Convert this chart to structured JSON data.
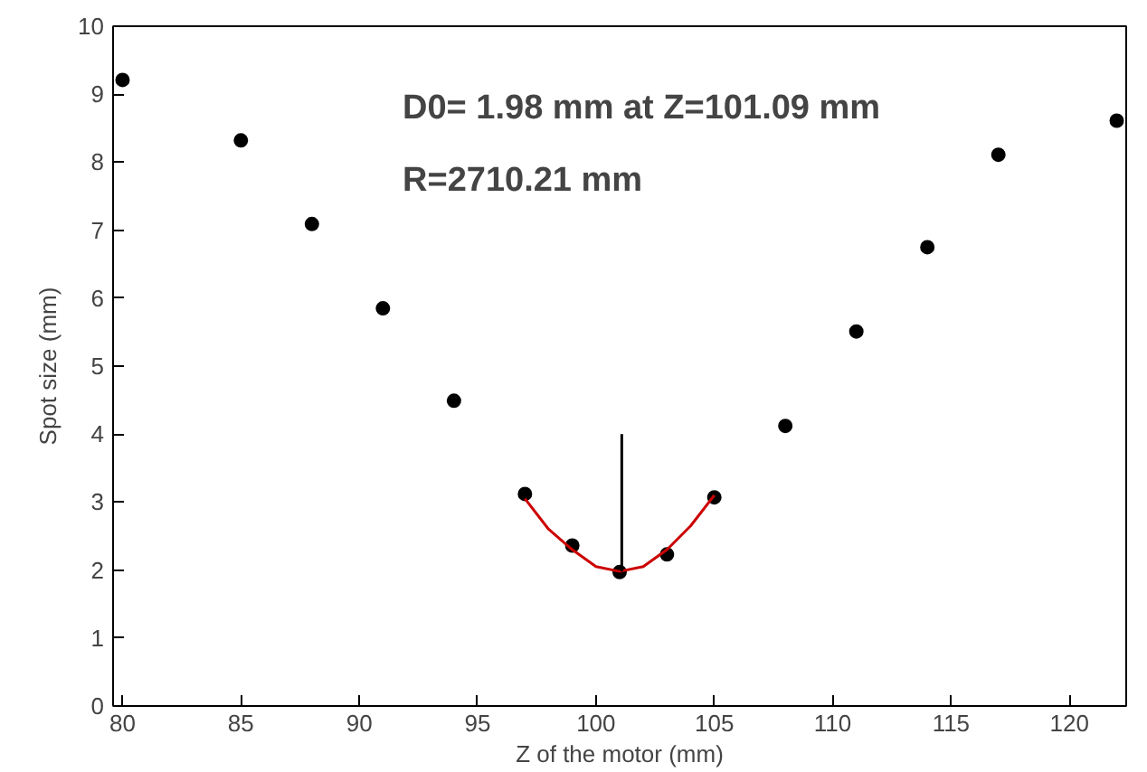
{
  "chart_data": {
    "type": "scatter",
    "xlabel": "Z of the motor (mm)",
    "ylabel": "Spot size (mm)",
    "annotations": [
      "D0= 1.98 mm at Z=101.09 mm",
      "R=2710.21 mm"
    ],
    "xlim": [
      79.6,
      122.4
    ],
    "ylim": [
      0,
      10
    ],
    "xticks": [
      80,
      85,
      90,
      95,
      100,
      105,
      110,
      115,
      120
    ],
    "yticks": [
      0,
      1,
      2,
      3,
      4,
      5,
      6,
      7,
      8,
      9,
      10
    ],
    "grid": false,
    "series": [
      {
        "marker": "circle",
        "color": "#000000",
        "x": [
          80,
          85,
          88,
          91,
          94,
          97,
          99,
          101,
          103,
          105,
          108,
          111,
          114,
          117,
          122
        ],
        "values": [
          9.21,
          8.32,
          7.09,
          5.85,
          4.49,
          3.12,
          2.36,
          1.97,
          2.23,
          3.07,
          4.12,
          5.51,
          6.75,
          8.11,
          8.61
        ]
      },
      {
        "type": "line",
        "marker": "none",
        "color": "#cc0000",
        "x": [
          97,
          98,
          99,
          100,
          101,
          102,
          103,
          104,
          105
        ],
        "values": [
          3.05,
          2.6,
          2.3,
          2.05,
          1.98,
          2.05,
          2.3,
          2.65,
          3.1
        ]
      },
      {
        "type": "line",
        "marker": "none",
        "color": "#000000",
        "x": [
          101.09,
          101.09
        ],
        "values": [
          1.98,
          4.0
        ]
      }
    ]
  }
}
